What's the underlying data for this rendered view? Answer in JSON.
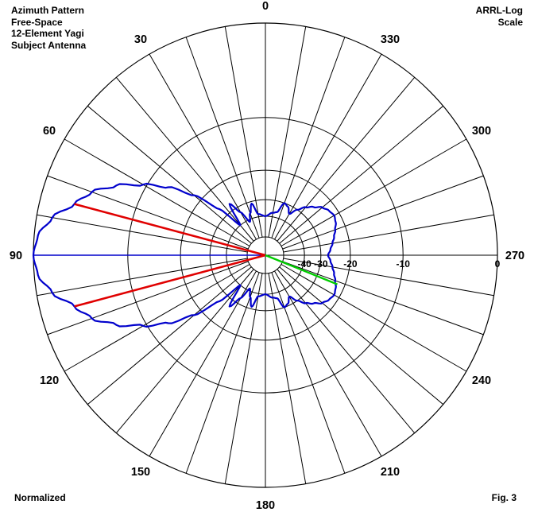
{
  "header": {
    "lines": [
      "Azimuth Pattern",
      "Free-Space",
      "12-Element Yagi",
      "Subject Antenna"
    ],
    "scale_lines": [
      "ARRL-Log",
      "Scale"
    ]
  },
  "footer": {
    "left": "Normalized",
    "right": "Fig. 3"
  },
  "colors": {
    "grid": "#000000",
    "pattern": "#0000cc",
    "beamwidth": "#e00000",
    "front_to_back": "#00cc00"
  },
  "chart_data": {
    "type": "polar",
    "scale": "ARRL-Log",
    "angle_labels": [
      "0",
      "30",
      "60",
      "90",
      "120",
      "150",
      "180",
      "210",
      "240",
      "270",
      "300",
      "330"
    ],
    "radial_labels": [
      "0",
      "-10",
      "-20",
      "-30",
      "-40"
    ],
    "radial_values_db": [
      0,
      -10,
      -20,
      -30,
      -40
    ],
    "spoke_step_deg": 10,
    "main_lobe_azimuth_deg": 90,
    "half_power_lines_deg": [
      75,
      105
    ],
    "half_power_level_db": -3,
    "front_to_back_line": {
      "azimuth_deg": 248,
      "level_db": -22
    },
    "pattern": {
      "name": "Azimuth pattern",
      "azimuth_deg": [
        0,
        10,
        15,
        20,
        25,
        30,
        35,
        40,
        45,
        50,
        55,
        60,
        65,
        70,
        75,
        80,
        85,
        90,
        95,
        100,
        105,
        110,
        115,
        120,
        125,
        130,
        135,
        140,
        145,
        150,
        155,
        160,
        165,
        170,
        180,
        190,
        195,
        200,
        205,
        210,
        215,
        220,
        225,
        230,
        235,
        240,
        245,
        250,
        255,
        260,
        265,
        270,
        275,
        280,
        285,
        290,
        295,
        300,
        305,
        310,
        315,
        320,
        325,
        330,
        335,
        340,
        345,
        350
      ],
      "gain_db": [
        -40,
        -38,
        -31,
        -36,
        -42,
        -33,
        -27,
        -40,
        -26,
        -18,
        -13,
        -9.5,
        -6.5,
        -4.3,
        -3,
        -1.3,
        -0.3,
        0,
        -0.3,
        -1.3,
        -3,
        -4.3,
        -6.5,
        -9.5,
        -13,
        -18,
        -26,
        -40,
        -27,
        -33,
        -42,
        -36,
        -31,
        -38,
        -40,
        -37,
        -36,
        -30,
        -31,
        -34,
        -30,
        -27,
        -25,
        -23,
        -22,
        -21.5,
        -22,
        -23,
        -24,
        -25,
        -26,
        -27,
        -26,
        -25,
        -24,
        -23,
        -22,
        -21.5,
        -22,
        -23,
        -25,
        -27,
        -30,
        -34,
        -31,
        -30,
        -36,
        -37
      ]
    }
  }
}
